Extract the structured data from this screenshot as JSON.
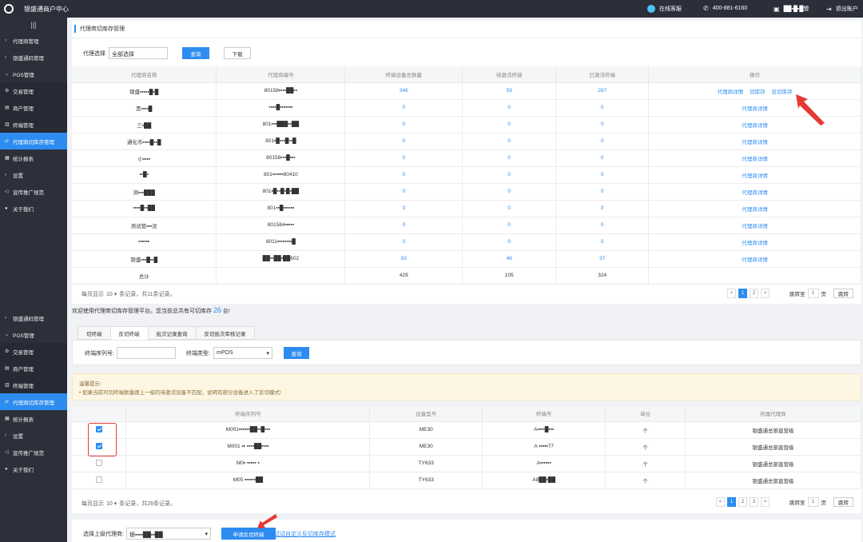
{
  "app": {
    "title": "银盛通商户中心",
    "service": "在线客服",
    "phone": "400-881-6160",
    "user": "██▪█▪█營",
    "logout": "退出账户"
  },
  "sidebar1": [
    {
      "label": "代理商管理",
      "icon": "chevron-right-icon",
      "sub": false,
      "active": false
    },
    {
      "label": "银盛通码管理",
      "icon": "chevron-right-icon",
      "sub": false,
      "active": false
    },
    {
      "label": "POS管理",
      "icon": "chevron-down-icon",
      "sub": false,
      "active": false
    },
    {
      "label": "交易管理",
      "icon": "transaction-icon",
      "sub": true,
      "active": false
    },
    {
      "label": "商户管理",
      "icon": "merchant-icon",
      "sub": true,
      "active": false
    },
    {
      "label": "终端管理",
      "icon": "terminal-icon",
      "sub": true,
      "active": false
    },
    {
      "label": "代理商切库存管理",
      "icon": "inventory-icon",
      "sub": true,
      "active": true
    },
    {
      "label": "统计报表",
      "icon": "report-icon",
      "sub": false,
      "active": false
    },
    {
      "label": "设置",
      "icon": "chevron-right-icon",
      "sub": false,
      "active": false
    },
    {
      "label": "宣传推广规范",
      "icon": "share-icon",
      "sub": false,
      "active": false
    },
    {
      "label": "关于我们",
      "icon": "info-icon",
      "sub": false,
      "active": false
    }
  ],
  "sidebar2": [
    {
      "label": "银盛通码管理",
      "icon": "chevron-right-icon",
      "sub": false,
      "active": false
    },
    {
      "label": "POS管理",
      "icon": "chevron-down-icon",
      "sub": false,
      "active": false
    },
    {
      "label": "交易管理",
      "icon": "transaction-icon",
      "sub": true,
      "active": false
    },
    {
      "label": "商户管理",
      "icon": "merchant-icon",
      "sub": true,
      "active": false
    },
    {
      "label": "终端管理",
      "icon": "terminal-icon",
      "sub": true,
      "active": false
    },
    {
      "label": "代理商切库存管理",
      "icon": "inventory-icon",
      "sub": true,
      "active": true
    },
    {
      "label": "统计报表",
      "icon": "report-icon",
      "sub": false,
      "active": false
    },
    {
      "label": "设置",
      "icon": "chevron-right-icon",
      "sub": false,
      "active": false
    },
    {
      "label": "宣传推广规范",
      "icon": "share-icon",
      "sub": false,
      "active": false
    },
    {
      "label": "关于我们",
      "icon": "info-icon",
      "sub": false,
      "active": false
    }
  ],
  "panel1": {
    "title": "代理商切库存管理",
    "filter_label": "代理选择",
    "filter_value": "全部选择",
    "query": "查询",
    "download": "下载",
    "columns": [
      "代理商名称",
      "代理商编号",
      "终端设备总数量",
      "待激活终端",
      "已激活终端",
      "操作"
    ],
    "rows": [
      {
        "name": "银盛▪▪▪▪▪█▪█",
        "id": "80158▪▪▪▪██▪▪",
        "total": "346",
        "pending": "59",
        "active": "287",
        "ops": [
          "代理商详情",
          "切库存",
          "反切库存"
        ]
      },
      {
        "name": "黑▪▪▪▪█",
        "id": "▪▪▪▪█▪▪▪▪▪▪▪",
        "total": "0",
        "pending": "0",
        "active": "0",
        "ops": [
          "代理商详情"
        ]
      },
      {
        "name": "三▪██",
        "id": "801▪▪▪███▪▪██",
        "total": "0",
        "pending": "0",
        "active": "0",
        "ops": [
          "代理商详情"
        ]
      },
      {
        "name": "通化市▪▪▪▪█▪▪█",
        "id": "801▪█▪▪▪█▪▪█",
        "total": "0",
        "pending": "0",
        "active": "0",
        "ops": [
          "代理商详情"
        ]
      },
      {
        "name": "小▪▪▪▪",
        "id": "80158▪▪▪█▪▪▪",
        "total": "0",
        "pending": "0",
        "active": "0",
        "ops": [
          "代理商详情"
        ]
      },
      {
        "name": "▪▪█▪",
        "id": "801▪▪▪▪▪▪80410",
        "total": "0",
        "pending": "0",
        "active": "0",
        "ops": [
          "代理商详情"
        ]
      },
      {
        "name": "测▪▪▪███",
        "id": "801▪█▪▪█▪█▪██",
        "total": "0",
        "pending": "0",
        "active": "0",
        "ops": [
          "代理商详情"
        ]
      },
      {
        "name": "▪▪▪▪█▪▪██",
        "id": "801▪▪█▪▪▪▪▪▪",
        "total": "0",
        "pending": "0",
        "active": "0",
        "ops": [
          "代理商详情"
        ]
      },
      {
        "name": "测试管▪▪▪没",
        "id": "801584▪▪▪▪▪",
        "total": "0",
        "pending": "0",
        "active": "0",
        "ops": [
          "代理商详情"
        ]
      },
      {
        "name": "▪▪▪▪▪▪",
        "id": "8011▪▪▪▪▪▪▪▪█",
        "total": "0",
        "pending": "0",
        "active": "0",
        "ops": [
          "代理商详情"
        ]
      },
      {
        "name": "银盛▪▪▪█▪▪█",
        "id": "██▪▪██▪██602",
        "total": "83",
        "pending": "46",
        "active": "37",
        "ops": [
          "代理商详情"
        ]
      }
    ],
    "total_row": {
      "label": "总计",
      "total": "429",
      "pending": "105",
      "active": "324"
    },
    "footer_left_a": "每页显示",
    "footer_size": "10",
    "footer_left_b": "条记录，共11条记录。",
    "pages": [
      "<",
      "1",
      "2",
      ">"
    ],
    "jump_label": "跳转至",
    "jump_value": "1",
    "jump_unit": "页",
    "jump_button": "跳转"
  },
  "welcome": {
    "a": "欢迎使用代理商切库存管理平台。您当前总共有可切库存",
    "count": "26",
    "b": "台!"
  },
  "tabs": [
    "切终端",
    "反切终端",
    "批次记录查询",
    "反切批次审核记录"
  ],
  "filter2": {
    "serial_label": "终端序列号:",
    "serial_value": "",
    "type_label": "终端类型:",
    "type_value": "mPOS",
    "query": "查询"
  },
  "tip": {
    "title": "温馨提示:",
    "text": "• 如果当前可切终端数量跟上一级的待激活设备不匹配，说明有部分设备进入了反切模式!"
  },
  "panel2": {
    "columns": [
      "终端序列号",
      "设备型号",
      "终端号",
      "单位",
      "所属代理商"
    ],
    "rows": [
      {
        "checked": true,
        "serial": "M001▪▪▪▪▪▪██▪▪█▪▪▪",
        "model": "ME30",
        "term": "A▪▪▪▪█▪▪▪",
        "unit": "个",
        "agent": "银盛通总部直营级"
      },
      {
        "checked": true,
        "serial": "M001 ▪▪ ▪▪▪▪██▪▪▪▪",
        "model": "ME30",
        "term": "A ▪▪▪▪▪77",
        "unit": "个",
        "agent": "银盛通总部直营级"
      },
      {
        "checked": false,
        "serial": "M0▪  ▪▪▪▪▪  ▪",
        "model": "TY633",
        "term": "A▪▪▪▪▪▪",
        "unit": "个",
        "agent": "银盛通总部直营级"
      },
      {
        "checked": false,
        "serial": "M05 ▪▪▪▪▪▪██",
        "model": "TY633",
        "term": "A8██▪██",
        "unit": "个",
        "agent": "银盛通总部直营级"
      }
    ],
    "footer_left_a": "每页显示",
    "footer_size": "10",
    "footer_left_b": "条记录，共26条记录。",
    "pages": [
      "<",
      "1",
      "2",
      "3",
      ">"
    ],
    "jump_label": "跳转至",
    "jump_value": "1",
    "jump_unit": "页",
    "jump_button": "跳转"
  },
  "bottom": {
    "label": "选择上级代理商:",
    "select_value": "银▪▪▪▪██▪▪██",
    "apply": "申请反切终端",
    "link": "试试自定义反切库存模式"
  },
  "colors": {
    "accent": "#2d8cf0",
    "sidebar": "#2d303b",
    "topbar": "#2b2f3a",
    "annotation": "#e53935"
  }
}
